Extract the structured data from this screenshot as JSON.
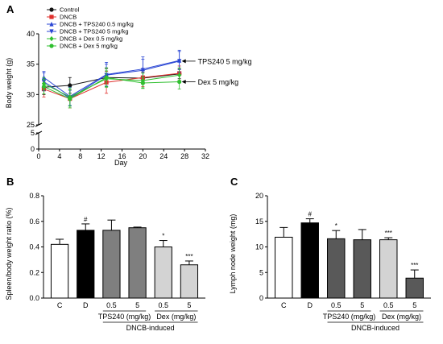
{
  "chart_data": [
    {
      "panel": "A",
      "type": "line",
      "xlabel": "Day",
      "ylabel": "Body weight (g)",
      "xlim": [
        0,
        32
      ],
      "ylim_broken": {
        "lower": [
          0,
          5
        ],
        "upper": [
          25,
          40
        ]
      },
      "x_ticks": [
        "0",
        "4",
        "8",
        "12",
        "16",
        "20",
        "24",
        "28",
        "32"
      ],
      "y_ticks_upper": [
        "25",
        "30",
        "35",
        "40"
      ],
      "y_ticks_lower": [
        "0",
        "5"
      ],
      "x": [
        1,
        6,
        13,
        20,
        27
      ],
      "series": [
        {
          "name": "Control",
          "color": "#111111",
          "marker": "circle",
          "values": [
            31.2,
            31.5,
            32.8,
            32.7,
            33.4
          ],
          "err": [
            1.2,
            1.3,
            1.5,
            1.0,
            0.8
          ]
        },
        {
          "name": "DNCB",
          "color": "#e0302c",
          "marker": "square",
          "values": [
            30.9,
            29.3,
            32.0,
            32.8,
            33.5
          ],
          "err": [
            1.3,
            1.5,
            1.8,
            1.5,
            1.2
          ]
        },
        {
          "name": "DNCB + TPS240 0.5 mg/kg",
          "color": "#2a46d4",
          "marker": "triangle-up",
          "values": [
            32.8,
            29.7,
            33.3,
            34.2,
            35.6
          ],
          "err": [
            1.0,
            1.5,
            2.0,
            2.0,
            1.5
          ]
        },
        {
          "name": "DNCB + TPS240 5 mg/kg",
          "color": "#2a46d4",
          "marker": "triangle-down",
          "values": [
            32.1,
            29.4,
            33.2,
            34.0,
            35.5
          ],
          "err": [
            1.5,
            1.3,
            1.8,
            1.8,
            1.8
          ]
        },
        {
          "name": "DNCB + Dex 0.5 mg/kg",
          "color": "#2fbf2f",
          "marker": "diamond",
          "values": [
            31.8,
            29.6,
            32.6,
            32.3,
            33.2
          ],
          "err": [
            1.0,
            1.5,
            1.3,
            1.2,
            1.2
          ]
        },
        {
          "name": "DNCB + Dex 5 mg/kg",
          "color": "#2fbf2f",
          "marker": "circle",
          "values": [
            31.3,
            29.3,
            32.8,
            31.9,
            32.1
          ],
          "err": [
            1.2,
            1.5,
            1.6,
            0.9,
            1.2
          ]
        }
      ],
      "annotations": [
        {
          "text": "TPS240 5 mg/kg",
          "at": [
            27,
            35.5
          ]
        },
        {
          "text": "Dex 5 mg/kg",
          "at": [
            27,
            32.1
          ]
        }
      ]
    },
    {
      "panel": "B",
      "type": "bar",
      "ylabel": "Spleen/body weight ratio (%)",
      "ylim": [
        0,
        0.8
      ],
      "y_ticks": [
        "0.0",
        "0.2",
        "0.4",
        "0.6",
        "0.8"
      ],
      "categories": [
        "C",
        "D",
        "0.5",
        "5",
        "0.5",
        "5"
      ],
      "values": [
        0.42,
        0.53,
        0.53,
        0.55,
        0.4,
        0.26
      ],
      "err": [
        0.04,
        0.05,
        0.08,
        0.005,
        0.05,
        0.03
      ],
      "fills": [
        "#ffffff",
        "#000000",
        "#7f7f7f",
        "#7f7f7f",
        "#d3d3d3",
        "#d3d3d3"
      ],
      "markers": [
        "",
        "#",
        "",
        "",
        "*",
        "***"
      ],
      "group_labels": [
        "TPS240 (mg/kg)",
        "Dex (mg/kg)"
      ],
      "footer_label": "DNCB-induced"
    },
    {
      "panel": "C",
      "type": "bar",
      "ylabel": "Lymph node weight (mg)",
      "ylim": [
        0,
        20
      ],
      "y_ticks": [
        "0",
        "5",
        "10",
        "15",
        "20"
      ],
      "categories": [
        "C",
        "D",
        "0.5",
        "5",
        "0.5",
        "5"
      ],
      "values": [
        11.9,
        14.7,
        11.6,
        11.4,
        11.4,
        3.9
      ],
      "err": [
        1.9,
        0.8,
        1.6,
        2.0,
        0.4,
        1.6
      ],
      "fills": [
        "#ffffff",
        "#000000",
        "#595959",
        "#595959",
        "#d3d3d3",
        "#595959"
      ],
      "markers": [
        "",
        "#",
        "*",
        "",
        "***",
        "***"
      ],
      "group_labels": [
        "TPS240 (mg/kg)",
        "Dex (mg/kg)"
      ],
      "footer_label": "DNCB-induced"
    }
  ]
}
